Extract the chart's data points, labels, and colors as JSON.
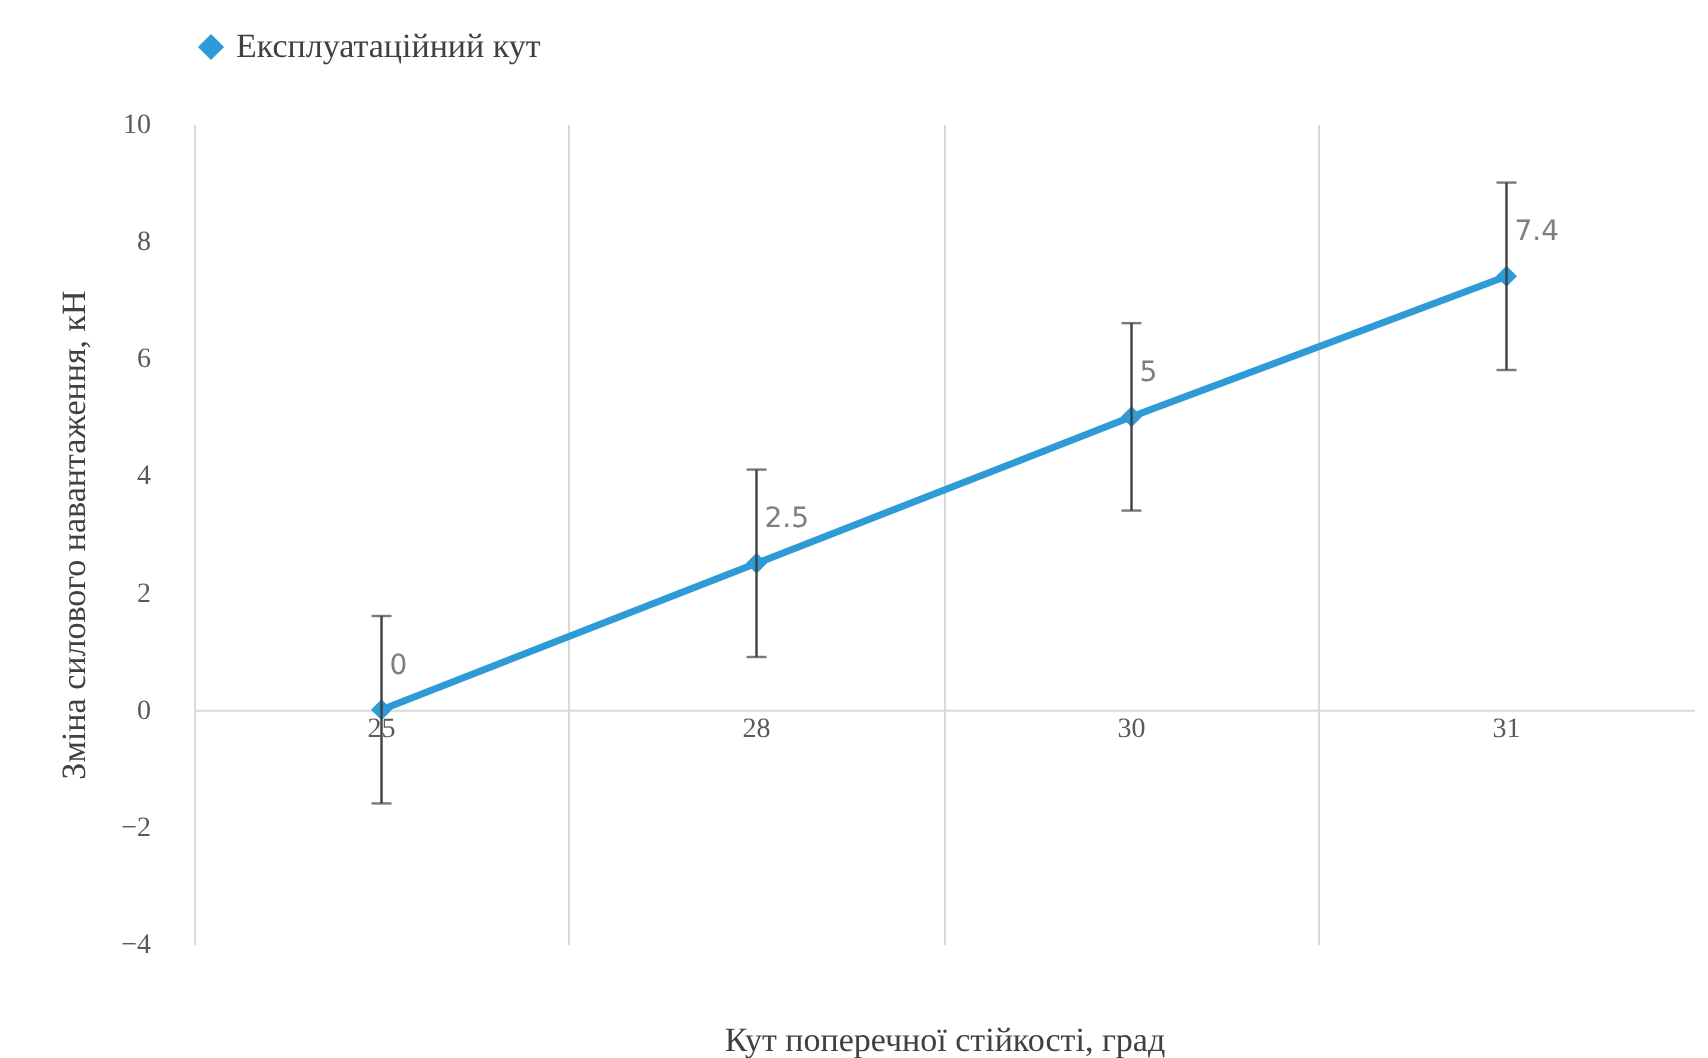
{
  "chart_data": {
    "type": "line",
    "xlabel": "Кут поперечної стійкості, град",
    "ylabel": "Зміна силового навантаження, кН",
    "categories": [
      "25",
      "28",
      "30",
      "31"
    ],
    "series": [
      {
        "name": "Експлуатаційний кут",
        "color": "#2e9bd6",
        "values": [
          0,
          2.5,
          5,
          7.4
        ],
        "errors": [
          1.6,
          1.6,
          1.6,
          1.6
        ]
      }
    ],
    "ylim": [
      -4,
      10
    ],
    "yticks": [
      -4,
      -2,
      0,
      2,
      4,
      6,
      8,
      10
    ],
    "grid": "x",
    "legend": "top",
    "marker": "diamond",
    "data_labels": true
  }
}
